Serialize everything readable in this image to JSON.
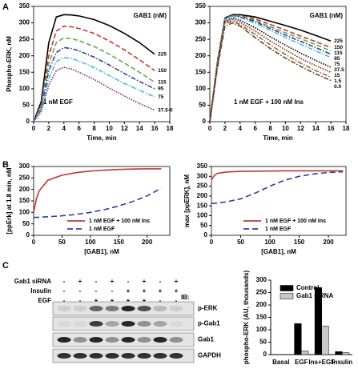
{
  "panel_labels": [
    "A",
    "B",
    "C"
  ],
  "chart_data": [
    {
      "type": "line",
      "xlabel": "Time, min",
      "ylabel": "Phospho-ERK, nM",
      "legend_title": "GAB1 (nM)",
      "annotation": "1 nM EGF",
      "legend": "inline",
      "xlim": [
        0,
        18
      ],
      "xticks": [
        0,
        2,
        4,
        6,
        8,
        10,
        12,
        14,
        16,
        18
      ],
      "ylim": [
        0,
        350
      ],
      "yticks": [
        0,
        50,
        100,
        150,
        200,
        250,
        300,
        350
      ],
      "x": [
        0,
        1,
        2,
        3,
        4,
        5,
        6,
        8,
        10,
        12,
        14,
        16
      ],
      "series": [
        {
          "name": "225",
          "color": "#000000",
          "style": "solid",
          "values": [
            0,
            60,
            240,
            318,
            325,
            324,
            321,
            310,
            292,
            268,
            240,
            205
          ]
        },
        {
          "name": "150",
          "color": "#c0392b",
          "style": "dashed",
          "values": [
            0,
            50,
            200,
            275,
            290,
            288,
            283,
            268,
            245,
            218,
            188,
            155
          ]
        },
        {
          "name": "115",
          "color": "#6aa84f",
          "style": "dashed",
          "values": [
            0,
            45,
            175,
            240,
            255,
            252,
            246,
            228,
            205,
            178,
            150,
            120
          ]
        },
        {
          "name": "95",
          "color": "#2e3e9e",
          "style": "dashdot",
          "values": [
            0,
            40,
            155,
            210,
            225,
            222,
            215,
            196,
            172,
            146,
            122,
            100
          ]
        },
        {
          "name": "75",
          "color": "#4bb8d8",
          "style": "dashdot",
          "values": [
            0,
            35,
            130,
            182,
            195,
            192,
            184,
            164,
            140,
            116,
            95,
            75
          ]
        },
        {
          "name": "37.5-0",
          "color": "#7b2d6b",
          "style": "dotted",
          "values": [
            0,
            30,
            110,
            155,
            165,
            160,
            150,
            128,
            102,
            78,
            55,
            35
          ]
        }
      ]
    },
    {
      "type": "line",
      "xlabel": "Time, min",
      "ylabel": "",
      "legend_title": "GAB1 (nM)",
      "annotation": "1 nM EGF + 100 nM Ins",
      "legend": "inline",
      "xlim": [
        0,
        18
      ],
      "xticks": [
        0,
        2,
        4,
        6,
        8,
        10,
        12,
        14,
        16,
        18
      ],
      "ylim": [
        0,
        350
      ],
      "yticks": [
        0,
        50,
        100,
        150,
        200,
        250,
        300,
        350
      ],
      "x": [
        0,
        1,
        2,
        3,
        4,
        6,
        8,
        10,
        12,
        14,
        16
      ],
      "series": [
        {
          "name": "225",
          "color": "#000000",
          "style": "solid",
          "values": [
            0,
            180,
            315,
            325,
            325,
            318,
            305,
            292,
            278,
            262,
            245
          ]
        },
        {
          "name": "150",
          "color": "#c0392b",
          "style": "dashed",
          "values": [
            0,
            178,
            313,
            323,
            322,
            312,
            295,
            278,
            260,
            243,
            225
          ]
        },
        {
          "name": "115",
          "color": "#6aa84f",
          "style": "dashed",
          "values": [
            0,
            176,
            312,
            322,
            320,
            308,
            288,
            270,
            252,
            234,
            215
          ]
        },
        {
          "name": "95",
          "color": "#2e3e9e",
          "style": "dashdot",
          "values": [
            0,
            175,
            311,
            321,
            318,
            304,
            283,
            263,
            244,
            225,
            205
          ]
        },
        {
          "name": "75",
          "color": "#4bb8d8",
          "style": "dashdot",
          "values": [
            0,
            173,
            310,
            320,
            316,
            299,
            277,
            256,
            235,
            215,
            195
          ]
        },
        {
          "name": "37.5",
          "color": "#000000",
          "style": "dotted",
          "values": [
            0,
            170,
            305,
            315,
            308,
            285,
            258,
            232,
            208,
            186,
            165
          ]
        },
        {
          "name": "15",
          "color": "#8b1a1a",
          "style": "dotted",
          "values": [
            0,
            168,
            302,
            310,
            302,
            275,
            245,
            218,
            192,
            170,
            150
          ]
        },
        {
          "name": "1.5",
          "color": "#8a6d3b",
          "style": "dashdot",
          "values": [
            0,
            165,
            298,
            305,
            295,
            265,
            233,
            204,
            178,
            155,
            135
          ]
        },
        {
          "name": "0.0",
          "color": "#6b4226",
          "style": "dashdot",
          "values": [
            0,
            162,
            290,
            300,
            290,
            255,
            222,
            193,
            168,
            145,
            125
          ]
        }
      ]
    },
    {
      "type": "line",
      "xlabel": "[GAB1], nM",
      "ylabel": "[ppErk] at 1.8 min, nM",
      "legend": "lower right",
      "xlim": [
        0,
        240
      ],
      "xticks": [
        0,
        50,
        100,
        150,
        200
      ],
      "ylim": [
        0,
        300
      ],
      "yticks": [
        0,
        50,
        100,
        150,
        200,
        250,
        300
      ],
      "x": [
        0,
        5,
        10,
        25,
        50,
        75,
        100,
        125,
        150,
        175,
        200,
        225
      ],
      "series": [
        {
          "name": "1 nM EGF + 100 nM Ins",
          "color": "#c0392b",
          "style": "solid",
          "values": [
            100,
            160,
            195,
            240,
            262,
            273,
            280,
            284,
            287,
            289,
            290,
            290
          ]
        },
        {
          "name": "1 nM EGF",
          "color": "#2e3e9e",
          "style": "longdash",
          "values": [
            78,
            78,
            79,
            81,
            85,
            91,
            100,
            112,
            128,
            148,
            172,
            205
          ]
        }
      ]
    },
    {
      "type": "line",
      "xlabel": "[GAB1], nM",
      "ylabel": "max [ppERK], nM",
      "legend": "lower right",
      "xlim": [
        0,
        230
      ],
      "xticks": [
        0,
        50,
        100,
        150,
        200
      ],
      "ylim": [
        0,
        350
      ],
      "yticks": [
        0,
        50,
        100,
        150,
        200,
        250,
        300,
        350
      ],
      "x": [
        0,
        5,
        10,
        25,
        50,
        75,
        100,
        125,
        150,
        175,
        200,
        225
      ],
      "series": [
        {
          "name": "1 nM EGF + 100 nM Ins",
          "color": "#c0392b",
          "style": "solid",
          "values": [
            282,
            305,
            315,
            322,
            325,
            326,
            327,
            328,
            328,
            328,
            328,
            328
          ]
        },
        {
          "name": "1 nM EGF",
          "color": "#2e3e9e",
          "style": "longdash",
          "values": [
            162,
            163,
            164,
            170,
            185,
            215,
            250,
            280,
            300,
            312,
            320,
            323
          ]
        }
      ]
    },
    {
      "type": "bar",
      "ylabel": "phospho-ERK (AU, thousands)",
      "legend": "upper right",
      "categories": [
        "Basal",
        "EGF",
        "Ins+EGF",
        "Insulin"
      ],
      "ylim": [
        0,
        300
      ],
      "yticks": [
        0,
        50,
        100,
        150,
        200,
        250,
        300
      ],
      "series": [
        {
          "name": "Control",
          "color": "#000000",
          "values": [
            0,
            125,
            270,
            12
          ]
        },
        {
          "name": "Gab1 siRNA",
          "color": "#c8c8c8",
          "values": [
            0,
            15,
            115,
            8
          ]
        }
      ]
    }
  ],
  "blot": {
    "rows": [
      {
        "label": "Gab1 siRNA",
        "signs": [
          "-",
          "+",
          "-",
          "+",
          "-",
          "+",
          "-",
          "+"
        ]
      },
      {
        "label": "Insulin",
        "signs": [
          "-",
          "-",
          "-",
          "-",
          "+",
          "+",
          "+",
          "+"
        ]
      },
      {
        "label": "EGF",
        "signs": [
          "-",
          "-",
          "+",
          "+",
          "+",
          "+",
          "-",
          "-"
        ]
      }
    ],
    "ib_label": "IB:",
    "bands": [
      "p-ERK",
      "p-Gab1",
      "Gab1",
      "GAPDH"
    ]
  }
}
